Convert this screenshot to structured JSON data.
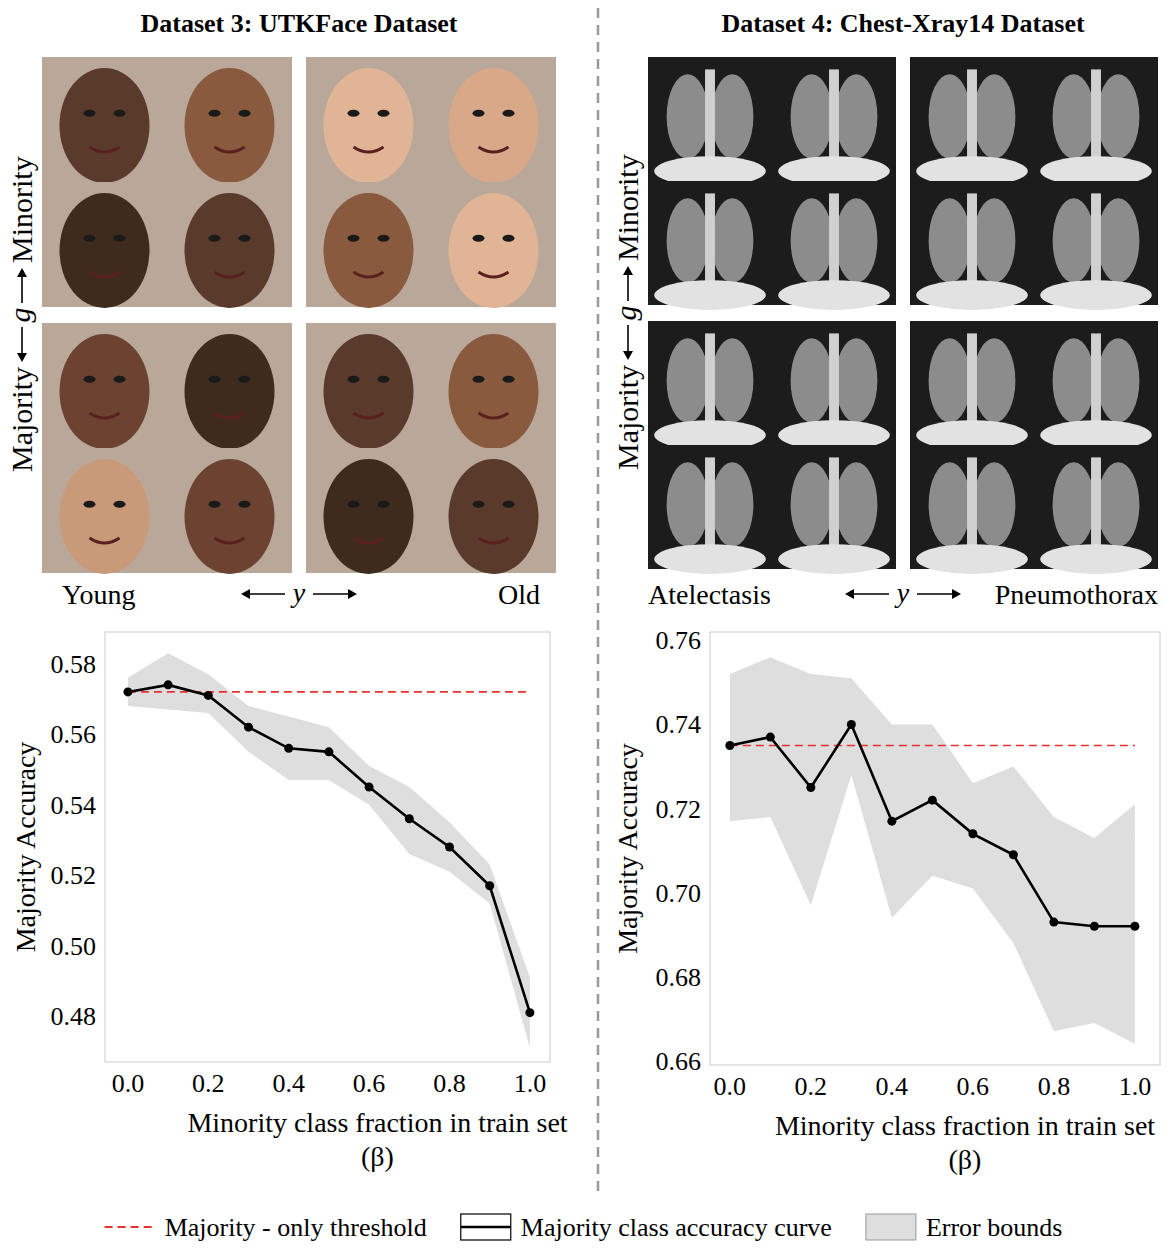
{
  "chart_data": [
    {
      "type": "line",
      "title": "Dataset 3: UTKFace Dataset",
      "image_grid": {
        "row_labels": [
          "Minority",
          "Majority"
        ],
        "row_axis": "g",
        "column_labels": [
          "Young",
          "Old"
        ],
        "column_axis": "y"
      },
      "xlabel": "Minority class fraction in train set",
      "xlabel_symbol": "(β)",
      "ylabel": "Majority Accuracy",
      "x": [
        0,
        0.1,
        0.2,
        0.3,
        0.4,
        0.5,
        0.6,
        0.7,
        0.8,
        0.9,
        1
      ],
      "xlim": [
        -0.057,
        1.05
      ],
      "xticks": [
        {
          "value": 0,
          "label": "0.0"
        },
        0.2,
        0.4,
        0.6,
        0.8,
        {
          "value": 1,
          "label": "1.0"
        }
      ],
      "ylim": [
        0.467,
        0.589
      ],
      "yticks": [
        0.48,
        {
          "value": 0.5,
          "label": "0.50"
        },
        0.52,
        0.54,
        0.56,
        0.58
      ],
      "grid": false,
      "legend": "bottom",
      "series": [
        {
          "name": "Majority - only threshold",
          "color": "#e8312f",
          "line_style": "dashed",
          "values": [
            0.572,
            0.572,
            0.572,
            0.572,
            0.572,
            0.572,
            0.572,
            0.572,
            0.572,
            0.572,
            0.572
          ]
        },
        {
          "name": "Majority class accuracy curve",
          "color": "#000000",
          "marker": "circle",
          "values": [
            0.572,
            0.574,
            0.571,
            0.562,
            0.556,
            0.555,
            0.545,
            0.536,
            0.528,
            0.517,
            0.481
          ]
        },
        {
          "name": "Error bounds",
          "type": "band",
          "color": "#dedede",
          "lower": [
            0.568,
            0.567,
            0.566,
            0.555,
            0.547,
            0.547,
            0.54,
            0.526,
            0.521,
            0.512,
            0.471
          ],
          "upper": [
            0.576,
            0.583,
            0.577,
            0.568,
            0.565,
            0.562,
            0.551,
            0.545,
            0.535,
            0.523,
            0.491
          ]
        }
      ]
    },
    {
      "type": "line",
      "title": "Dataset 4: Chest-Xray14 Dataset",
      "image_grid": {
        "row_labels": [
          "Minority",
          "Majority"
        ],
        "row_axis": "g",
        "column_labels": [
          "Atelectasis",
          "Pneumothorax"
        ],
        "column_axis": "y"
      },
      "xlabel": "Minority class fraction in train set",
      "xlabel_symbol": "(β)",
      "ylabel": "Majority Accuracy",
      "x": [
        0,
        0.1,
        0.2,
        0.3,
        0.4,
        0.5,
        0.6,
        0.7,
        0.8,
        0.9,
        1
      ],
      "xlim": [
        -0.049,
        1.062
      ],
      "xticks": [
        {
          "value": 0,
          "label": "0.0"
        },
        0.2,
        0.4,
        0.6,
        0.8,
        {
          "value": 1,
          "label": "1.0"
        }
      ],
      "ylim": [
        0.659,
        0.762
      ],
      "yticks": [
        0.66,
        0.68,
        {
          "value": 0.7,
          "label": "0.70"
        },
        0.72,
        0.74,
        0.76
      ],
      "grid": false,
      "legend": "bottom",
      "series": [
        {
          "color": "#e8312f",
          "line_style": "dashed",
          "values": [
            0.735,
            0.735,
            0.735,
            0.735,
            0.735,
            0.735,
            0.735,
            0.735,
            0.735,
            0.735,
            0.735
          ]
        },
        {
          "color": "#000000",
          "marker": "circle",
          "values": [
            0.735,
            0.737,
            0.725,
            0.74,
            0.717,
            0.722,
            0.714,
            0.709,
            0.693,
            0.692,
            0.692
          ]
        },
        {
          "type": "band",
          "color": "#dedede",
          "lower": [
            0.717,
            0.718,
            0.697,
            0.728,
            0.694,
            0.704,
            0.701,
            0.688,
            0.667,
            0.669,
            0.664
          ],
          "upper": [
            0.752,
            0.756,
            0.752,
            0.751,
            0.74,
            0.74,
            0.726,
            0.73,
            0.718,
            0.713,
            0.721
          ]
        }
      ]
    }
  ]
}
